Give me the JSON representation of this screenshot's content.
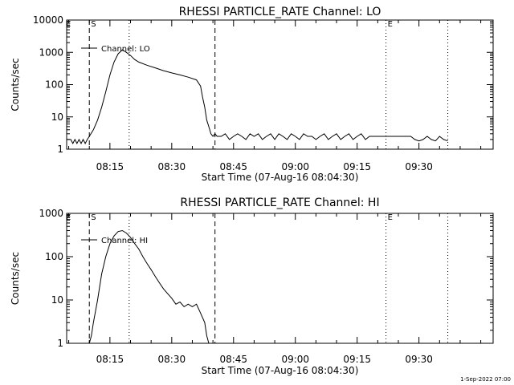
{
  "timestamp": "1-Sep-2022 07:00",
  "chart_data": [
    {
      "type": "line",
      "title": "RHESSI PARTICLE_RATE Channel: LO",
      "xlabel": "Start Time (07-Aug-16 08:04:30)",
      "ylabel": "Counts/sec",
      "yscale": "log",
      "ylim": [
        1,
        10000
      ],
      "xlim": [
        "08:04:30",
        "09:48:00"
      ],
      "xticks": [
        "08:15",
        "08:30",
        "08:45",
        "09:00",
        "09:15",
        "09:30"
      ],
      "yticks": [
        "1",
        "10",
        "100",
        "1000",
        "10000"
      ],
      "legend": "top-left",
      "markers": [
        {
          "time": "08:10:00",
          "style": "dashed",
          "label": "S"
        },
        {
          "time": "08:19:40",
          "style": "dotted",
          "label": ""
        },
        {
          "time": "08:40:30",
          "style": "dashed",
          "label": ""
        },
        {
          "time": "09:22:00",
          "style": "dotted",
          "label": "E"
        },
        {
          "time": "09:37:00",
          "style": "dotted",
          "label": ""
        }
      ],
      "series": [
        {
          "name": "Channel: LO",
          "x": [
            "08:04:30",
            "08:05:30",
            "08:06:00",
            "08:06:30",
            "08:07:00",
            "08:07:30",
            "08:08:00",
            "08:08:30",
            "08:09:00",
            "08:09:30",
            "08:10:00",
            "08:11:00",
            "08:12:00",
            "08:13:00",
            "08:14:00",
            "08:15:00",
            "08:16:00",
            "08:17:00",
            "08:18:00",
            "08:19:00",
            "08:20:00",
            "08:21:00",
            "08:22:00",
            "08:24:00",
            "08:26:00",
            "08:28:00",
            "08:30:00",
            "08:32:00",
            "08:34:00",
            "08:36:00",
            "08:37:00",
            "08:37:30",
            "08:38:00",
            "08:38:30",
            "08:39:00",
            "08:39:30",
            "08:40:00",
            "08:40:30",
            "08:41:00",
            "08:42:00",
            "08:43:00",
            "08:44:00",
            "08:45:00",
            "08:46:00",
            "08:47:00",
            "08:48:00",
            "08:49:00",
            "08:50:00",
            "08:51:00",
            "08:52:00",
            "08:53:00",
            "08:54:00",
            "08:55:00",
            "08:56:00",
            "08:57:00",
            "08:58:00",
            "08:59:00",
            "09:00:00",
            "09:01:00",
            "09:02:00",
            "09:03:00",
            "09:04:00",
            "09:05:00",
            "09:06:00",
            "09:07:00",
            "09:08:00",
            "09:09:00",
            "09:10:00",
            "09:11:00",
            "09:12:00",
            "09:13:00",
            "09:14:00",
            "09:15:00",
            "09:16:00",
            "09:17:00",
            "09:18:00",
            "09:20:00",
            "09:22:00",
            "09:24:00",
            "09:26:00",
            "09:28:00",
            "09:29:00",
            "09:30:00",
            "09:31:00",
            "09:32:00",
            "09:33:00",
            "09:34:00",
            "09:35:00",
            "09:36:00",
            "09:37:00"
          ],
          "values": [
            2,
            2,
            1.5,
            2,
            1.5,
            2,
            1.5,
            2,
            1.5,
            2,
            2.5,
            4,
            8,
            20,
            60,
            200,
            500,
            900,
            1200,
            1000,
            800,
            600,
            500,
            400,
            330,
            270,
            230,
            200,
            170,
            140,
            90,
            40,
            20,
            8,
            5,
            3,
            2.5,
            3,
            2.5,
            2.5,
            3,
            2,
            2.5,
            3,
            2.5,
            2,
            3,
            2.5,
            3,
            2,
            2.5,
            3,
            2,
            3,
            2.5,
            2,
            3,
            2.5,
            2,
            3,
            2.5,
            2.5,
            2,
            2.5,
            3,
            2,
            2.5,
            3,
            2,
            2.5,
            3,
            2,
            2.5,
            3,
            2,
            2.5,
            2.5,
            2.5,
            2.5,
            2.5,
            2.5,
            2,
            1.8,
            2,
            2.5,
            2,
            1.8,
            2.5,
            2,
            1.8
          ]
        }
      ]
    },
    {
      "type": "line",
      "title": "RHESSI PARTICLE_RATE Channel: HI",
      "xlabel": "Start Time (07-Aug-16 08:04:30)",
      "ylabel": "Counts/sec",
      "yscale": "log",
      "ylim": [
        1,
        1000
      ],
      "xlim": [
        "08:04:30",
        "09:48:00"
      ],
      "xticks": [
        "08:15",
        "08:30",
        "08:45",
        "09:00",
        "09:15",
        "09:30"
      ],
      "yticks": [
        "1",
        "10",
        "100",
        "1000"
      ],
      "legend": "top-left",
      "markers": [
        {
          "time": "08:10:00",
          "style": "dashed",
          "label": "S"
        },
        {
          "time": "08:19:40",
          "style": "dotted",
          "label": ""
        },
        {
          "time": "08:40:30",
          "style": "dashed",
          "label": ""
        },
        {
          "time": "09:22:00",
          "style": "dotted",
          "label": "E"
        },
        {
          "time": "09:37:00",
          "style": "dotted",
          "label": ""
        }
      ],
      "series": [
        {
          "name": "Channel: HI",
          "x": [
            "08:10:00",
            "08:10:30",
            "08:11:00",
            "08:12:00",
            "08:13:00",
            "08:14:00",
            "08:15:00",
            "08:16:00",
            "08:17:00",
            "08:18:00",
            "08:19:00",
            "08:20:00",
            "08:21:00",
            "08:22:00",
            "08:23:00",
            "08:24:00",
            "08:25:00",
            "08:26:00",
            "08:27:00",
            "08:28:00",
            "08:29:00",
            "08:30:00",
            "08:31:00",
            "08:32:00",
            "08:33:00",
            "08:34:00",
            "08:35:00",
            "08:36:00",
            "08:37:00",
            "08:38:00",
            "08:38:30",
            "08:39:00"
          ],
          "values": [
            1,
            1.5,
            3,
            10,
            40,
            100,
            200,
            300,
            380,
            400,
            350,
            280,
            200,
            150,
            100,
            70,
            50,
            35,
            25,
            18,
            14,
            11,
            8,
            9,
            7,
            8,
            7,
            8,
            5,
            3,
            1.5,
            1
          ]
        }
      ]
    }
  ]
}
